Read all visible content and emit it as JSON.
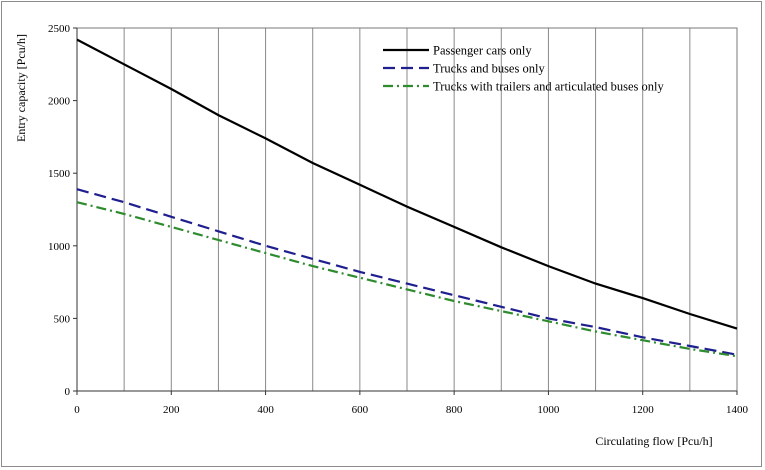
{
  "chart_data": {
    "type": "line",
    "title": "",
    "xlabel": "Circulating flow [Pcu/h]",
    "ylabel": "Entry capacity [Pcu/h]",
    "xlim": [
      0,
      1400
    ],
    "ylim": [
      0,
      2500
    ],
    "x_ticks": [
      0,
      200,
      400,
      600,
      800,
      1000,
      1200,
      1400
    ],
    "y_ticks": [
      0,
      500,
      1000,
      1500,
      2000,
      2500
    ],
    "grid": "vertical",
    "legend_position": "top-right",
    "x": [
      0,
      100,
      200,
      300,
      400,
      500,
      600,
      700,
      800,
      900,
      1000,
      1100,
      1200,
      1300,
      1400
    ],
    "series": [
      {
        "name": "Passenger cars only",
        "color": "#000000",
        "dash": "solid",
        "values": [
          2420,
          2250,
          2080,
          1900,
          1740,
          1570,
          1420,
          1270,
          1130,
          990,
          860,
          740,
          640,
          530,
          430
        ]
      },
      {
        "name": "Trucks and buses only",
        "color": "#1f1f8f",
        "dash": "dashed",
        "values": [
          1390,
          1300,
          1200,
          1100,
          1000,
          910,
          820,
          740,
          660,
          580,
          500,
          440,
          370,
          310,
          250
        ]
      },
      {
        "name": "Trucks with trailers and articulated buses only",
        "color": "#2e8b2e",
        "dash": "dashdot",
        "values": [
          1300,
          1220,
          1130,
          1040,
          950,
          860,
          780,
          700,
          620,
          550,
          480,
          410,
          350,
          290,
          240
        ]
      }
    ]
  }
}
